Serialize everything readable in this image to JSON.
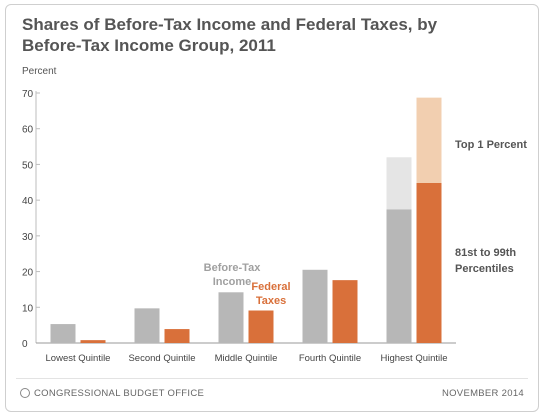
{
  "title": "Shares of Before-Tax Income and Federal Taxes, by Before-Tax Income Group, 2011",
  "ylabel": "Percent",
  "footer": {
    "left": "CONGRESSIONAL BUDGET OFFICE",
    "right": "NOVEMBER 2014"
  },
  "colors": {
    "income": "#b7b7b7",
    "income_top": "#e5e5e5",
    "taxes": "#d9703a",
    "taxes_top": "#f2cfb0",
    "axis_text": "#444444",
    "income_label": "#a0a0a0",
    "taxes_label": "#d9703a",
    "annot": "#555555"
  },
  "chart_data": {
    "type": "bar",
    "categories": [
      "Lowest Quintile",
      "Second Quintile",
      "Middle Quintile",
      "Fourth Quintile",
      "Highest Quintile"
    ],
    "series": [
      {
        "name": "Before-Tax Income",
        "values": [
          5.3,
          9.7,
          14.2,
          20.5,
          52.0
        ],
        "base_values": [
          null,
          null,
          null,
          null,
          37.4
        ]
      },
      {
        "name": "Federal Taxes",
        "values": [
          0.8,
          3.9,
          9.1,
          17.6,
          68.7
        ],
        "base_values": [
          null,
          null,
          null,
          null,
          44.8
        ]
      }
    ],
    "ylim": [
      0,
      70
    ],
    "yticks": [
      0,
      10,
      20,
      30,
      40,
      50,
      60,
      70
    ],
    "annotations": {
      "income_label": [
        "Before-Tax",
        "Income"
      ],
      "taxes_label": [
        "Federal",
        "Taxes"
      ],
      "top_one": "Top 1 Percent",
      "mid_label": [
        "81st to 99th",
        "Percentiles"
      ]
    }
  }
}
